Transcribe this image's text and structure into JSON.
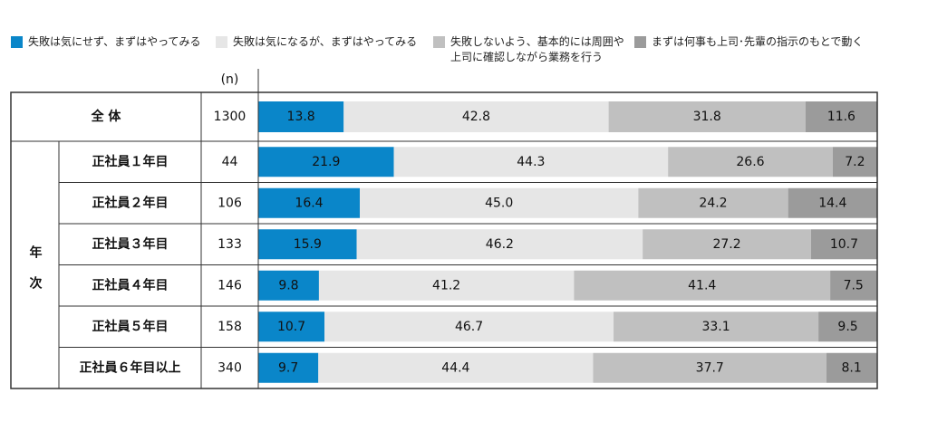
{
  "chart_data": {
    "type": "bar",
    "orientation": "horizontal",
    "stacked": true,
    "categories": [
      "全 体",
      "正社員１年目",
      "正社員２年目",
      "正社員３年目",
      "正社員４年目",
      "正社員５年目",
      "正社員６年目以上"
    ],
    "group_label": "年次",
    "n_label": "(n)",
    "n": [
      1300,
      44,
      106,
      133,
      146,
      158,
      340
    ],
    "xlim": [
      0,
      100
    ],
    "series": [
      {
        "name": "失敗は気にせず、まずはやってみる",
        "color": "#0a86c9",
        "values": [
          13.8,
          21.9,
          16.4,
          15.9,
          9.8,
          10.7,
          9.7
        ],
        "value_labels": [
          "13.8",
          "21.9",
          "16.4",
          "15.9",
          "9.8",
          "10.7",
          "9.7"
        ]
      },
      {
        "name": "失敗は気になるが、まずはやってみる",
        "color": "#e6e6e6",
        "values": [
          42.8,
          44.3,
          45.0,
          46.2,
          41.2,
          46.7,
          44.4
        ],
        "value_labels": [
          "42.8",
          "44.3",
          "45.0",
          "46.2",
          "41.2",
          "46.7",
          "44.4"
        ]
      },
      {
        "name": "失敗しないよう、基本的には周囲や上司に確認しながら業務を行う",
        "color": "#c0c0c0",
        "values": [
          31.8,
          26.6,
          24.2,
          27.2,
          41.4,
          33.1,
          37.7
        ],
        "value_labels": [
          "31.8",
          "26.6",
          "24.2",
          "27.2",
          "41.4",
          "33.1",
          "37.7"
        ]
      },
      {
        "name": "まずは何事も上司･先輩の指示のもとで動く",
        "color": "#9b9b9b",
        "values": [
          11.6,
          7.2,
          14.4,
          10.7,
          7.5,
          9.5,
          8.1
        ],
        "value_labels": [
          "11.6",
          "7.2",
          "14.4",
          "10.7",
          "7.5",
          "9.5",
          "8.1"
        ]
      }
    ]
  }
}
